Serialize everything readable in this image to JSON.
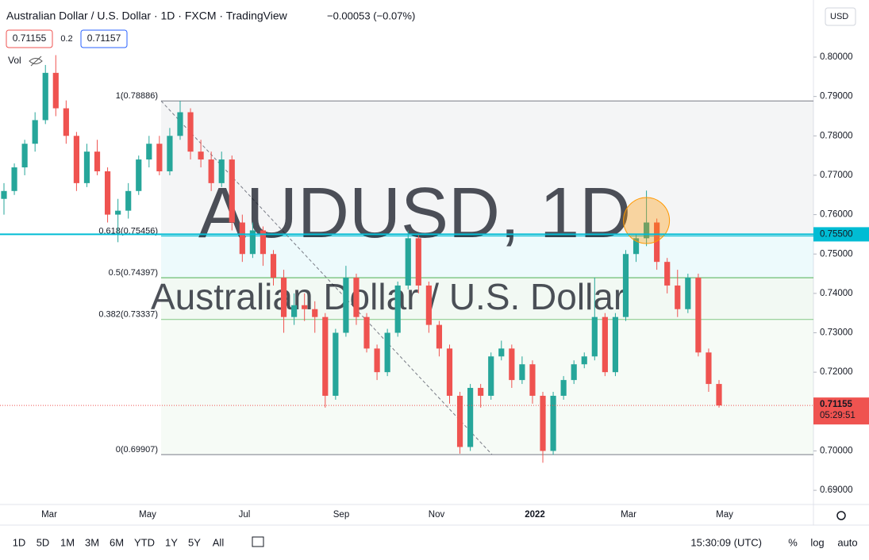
{
  "chart_data": {
    "type": "candlestick",
    "title": "Australian Dollar / U.S. Dollar · 1D · FXCM · TradingView",
    "change": "−0.00053 (−0.07%)",
    "bid": "0.71155",
    "spread": "0.2",
    "ask": "0.71157",
    "volume_label": "Vol",
    "currency": "USD",
    "watermark": "AUDUSD, 1D",
    "watermark_sub": "Australian Dollar / U.S. Dollar",
    "up_color": "#26a69a",
    "down_color": "#ef5350",
    "ylim": [
      0.6864,
      0.8145
    ],
    "yticks": [
      {
        "value": 0.69,
        "label": "0.69000"
      },
      {
        "value": 0.7,
        "label": "0.70000"
      },
      {
        "value": 0.71,
        "label": "0.71000"
      },
      {
        "value": 0.72,
        "label": "0.72000"
      },
      {
        "value": 0.73,
        "label": "0.73000"
      },
      {
        "value": 0.74,
        "label": "0.74000"
      },
      {
        "value": 0.75,
        "label": "0.75000"
      },
      {
        "value": 0.76,
        "label": "0.76000"
      },
      {
        "value": 0.77,
        "label": "0.77000"
      },
      {
        "value": 0.78,
        "label": "0.78000"
      },
      {
        "value": 0.79,
        "label": "0.79000"
      },
      {
        "value": 0.8,
        "label": "0.80000"
      }
    ],
    "xtick_labels": [
      "Mar",
      "May",
      "Jul",
      "Sep",
      "Nov",
      "2022",
      "Mar",
      "May"
    ],
    "fib_levels": [
      {
        "label": "1(0.78886)",
        "value": 0.78886
      },
      {
        "label": "0.618(0.75456)",
        "value": 0.75456
      },
      {
        "label": "0.5(0.74397)",
        "value": 0.74397
      },
      {
        "label": "0.382(0.73337)",
        "value": 0.73337
      },
      {
        "label": "0(0.69907)",
        "value": 0.69907
      }
    ],
    "price_line": {
      "value": 0.755,
      "label": "0.75500",
      "color": "#00bcd4"
    },
    "last_price": {
      "value": 0.71155,
      "label": "0.71155",
      "countdown": "05:29:51"
    },
    "ohlc": [
      [
        0.764,
        0.768,
        0.76,
        0.766
      ],
      [
        0.766,
        0.773,
        0.765,
        0.772
      ],
      [
        0.772,
        0.779,
        0.77,
        0.778
      ],
      [
        0.778,
        0.786,
        0.776,
        0.784
      ],
      [
        0.784,
        0.798,
        0.783,
        0.796
      ],
      [
        0.796,
        0.8005,
        0.785,
        0.787
      ],
      [
        0.787,
        0.789,
        0.778,
        0.78
      ],
      [
        0.78,
        0.781,
        0.766,
        0.768
      ],
      [
        0.768,
        0.778,
        0.767,
        0.776
      ],
      [
        0.776,
        0.779,
        0.77,
        0.771
      ],
      [
        0.771,
        0.772,
        0.758,
        0.76
      ],
      [
        0.76,
        0.764,
        0.753,
        0.761
      ],
      [
        0.761,
        0.768,
        0.759,
        0.766
      ],
      [
        0.766,
        0.775,
        0.765,
        0.774
      ],
      [
        0.774,
        0.78,
        0.772,
        0.778
      ],
      [
        0.778,
        0.78,
        0.77,
        0.771
      ],
      [
        0.771,
        0.782,
        0.77,
        0.78
      ],
      [
        0.78,
        0.7889,
        0.779,
        0.786
      ],
      [
        0.786,
        0.787,
        0.774,
        0.776
      ],
      [
        0.776,
        0.779,
        0.772,
        0.774
      ],
      [
        0.774,
        0.776,
        0.766,
        0.768
      ],
      [
        0.768,
        0.776,
        0.767,
        0.774
      ],
      [
        0.774,
        0.775,
        0.756,
        0.758
      ],
      [
        0.758,
        0.76,
        0.748,
        0.75
      ],
      [
        0.75,
        0.758,
        0.749,
        0.756
      ],
      [
        0.756,
        0.757,
        0.747,
        0.75
      ],
      [
        0.75,
        0.751,
        0.742,
        0.744
      ],
      [
        0.744,
        0.746,
        0.73,
        0.734
      ],
      [
        0.734,
        0.74,
        0.732,
        0.737
      ],
      [
        0.737,
        0.74,
        0.733,
        0.736
      ],
      [
        0.736,
        0.738,
        0.73,
        0.734
      ],
      [
        0.734,
        0.735,
        0.711,
        0.714
      ],
      [
        0.714,
        0.731,
        0.713,
        0.73
      ],
      [
        0.73,
        0.747,
        0.729,
        0.744
      ],
      [
        0.744,
        0.745,
        0.732,
        0.734
      ],
      [
        0.734,
        0.735,
        0.725,
        0.726
      ],
      [
        0.726,
        0.727,
        0.718,
        0.72
      ],
      [
        0.72,
        0.731,
        0.719,
        0.73
      ],
      [
        0.73,
        0.743,
        0.729,
        0.742
      ],
      [
        0.742,
        0.756,
        0.741,
        0.754
      ],
      [
        0.754,
        0.755,
        0.74,
        0.742
      ],
      [
        0.742,
        0.743,
        0.73,
        0.732
      ],
      [
        0.732,
        0.733,
        0.724,
        0.726
      ],
      [
        0.726,
        0.727,
        0.712,
        0.714
      ],
      [
        0.714,
        0.715,
        0.6993,
        0.701
      ],
      [
        0.701,
        0.717,
        0.7,
        0.716
      ],
      [
        0.716,
        0.717,
        0.711,
        0.714
      ],
      [
        0.714,
        0.725,
        0.713,
        0.724
      ],
      [
        0.724,
        0.728,
        0.723,
        0.726
      ],
      [
        0.726,
        0.727,
        0.716,
        0.718
      ],
      [
        0.718,
        0.724,
        0.717,
        0.722
      ],
      [
        0.722,
        0.723,
        0.712,
        0.714
      ],
      [
        0.714,
        0.715,
        0.697,
        0.7
      ],
      [
        0.7,
        0.715,
        0.699,
        0.714
      ],
      [
        0.714,
        0.719,
        0.713,
        0.718
      ],
      [
        0.718,
        0.723,
        0.717,
        0.722
      ],
      [
        0.722,
        0.725,
        0.721,
        0.724
      ],
      [
        0.724,
        0.744,
        0.723,
        0.734
      ],
      [
        0.734,
        0.735,
        0.719,
        0.72
      ],
      [
        0.72,
        0.735,
        0.719,
        0.734
      ],
      [
        0.734,
        0.751,
        0.733,
        0.75
      ],
      [
        0.75,
        0.755,
        0.748,
        0.754
      ],
      [
        0.754,
        0.7661,
        0.752,
        0.758
      ],
      [
        0.758,
        0.759,
        0.746,
        0.748
      ],
      [
        0.748,
        0.749,
        0.74,
        0.742
      ],
      [
        0.742,
        0.746,
        0.734,
        0.736
      ],
      [
        0.736,
        0.745,
        0.735,
        0.744
      ],
      [
        0.744,
        0.745,
        0.724,
        0.725
      ],
      [
        0.725,
        0.726,
        0.715,
        0.717
      ],
      [
        0.717,
        0.718,
        0.711,
        0.71155
      ]
    ]
  },
  "toolbar": {
    "ranges": [
      "1D",
      "5D",
      "1M",
      "3M",
      "6M",
      "YTD",
      "1Y",
      "5Y",
      "All"
    ],
    "clock": "15:30:09 (UTC)",
    "percent": "%",
    "log": "log",
    "auto": "auto"
  }
}
